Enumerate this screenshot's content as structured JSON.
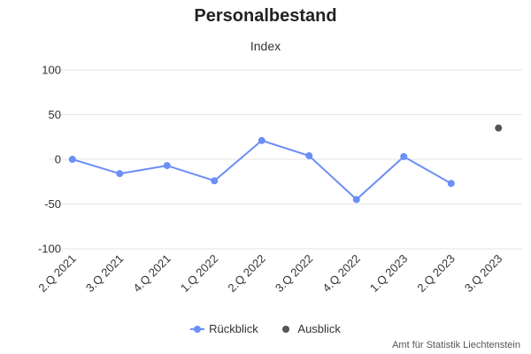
{
  "chart_data": {
    "type": "line",
    "title": "Personalbestand",
    "subtitle": "Index",
    "categories": [
      "2.Q 2021",
      "3.Q 2021",
      "4.Q 2021",
      "1.Q 2022",
      "2.Q 2022",
      "3.Q 2022",
      "4.Q 2022",
      "1.Q 2023",
      "2.Q 2023",
      "3.Q 2023"
    ],
    "series": [
      {
        "name": "Rückblick",
        "color": "#6b8ef7",
        "values": [
          0,
          -16,
          -7,
          -24,
          21,
          4,
          -45,
          3,
          -27,
          null
        ]
      },
      {
        "name": "Ausblick",
        "color": "#555555",
        "values": [
          null,
          null,
          null,
          null,
          null,
          null,
          null,
          null,
          null,
          35
        ]
      }
    ],
    "ylim": [
      -100,
      100
    ],
    "yticks": [
      100,
      50,
      0,
      -50,
      -100
    ],
    "grid": true,
    "legend_position": "bottom"
  },
  "credits": "Amt für Statistik Liechtenstein"
}
